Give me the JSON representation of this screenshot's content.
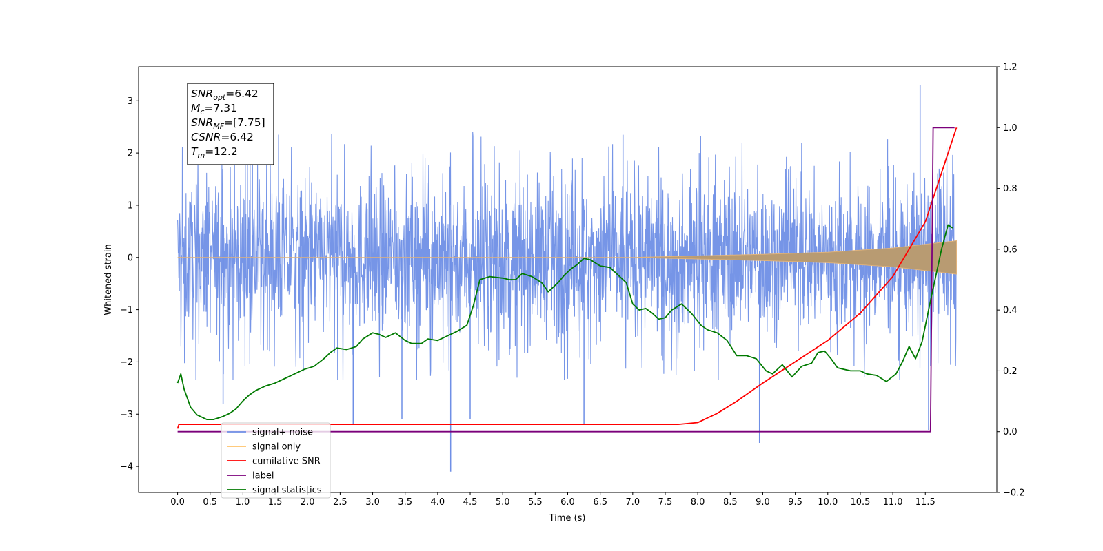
{
  "chart_data": {
    "type": "line",
    "title": "",
    "xlabel": "Time (s)",
    "ylabel": "Whitened strain",
    "y2label": "",
    "xlim": [
      -0.6,
      12.6
    ],
    "ylim": [
      -4.5,
      3.65
    ],
    "y2lim": [
      -0.2,
      1.2
    ],
    "x_ticks": [
      "0.0",
      "0.5",
      "1.0",
      "1.5",
      "2.0",
      "2.5",
      "3.0",
      "3.5",
      "4.0",
      "4.5",
      "5.0",
      "5.5",
      "6.0",
      "6.5",
      "7.0",
      "7.5",
      "8.0",
      "8.5",
      "9.0",
      "9.5",
      "10.0",
      "10.5",
      "11.0",
      "11.5"
    ],
    "y_ticks": [
      "3",
      "2",
      "1",
      "0",
      "−1",
      "−2",
      "−3",
      "−4"
    ],
    "y2_ticks": [
      "1.2",
      "1.0",
      "0.8",
      "0.6",
      "0.4",
      "0.2",
      "0.0",
      "−0.2"
    ],
    "annotation": {
      "lines": [
        {
          "base": "SNR",
          "sub": "opt",
          "rest": "=6.42"
        },
        {
          "base": "M",
          "sub": "c",
          "rest": "=7.31"
        },
        {
          "base": "SNR",
          "sub": "MF",
          "rest": "=[7.75]"
        },
        {
          "base": "CSNR",
          "sub": "",
          "rest": "=6.42"
        },
        {
          "base": "T",
          "sub": "m",
          "rest": "=12.2"
        }
      ]
    },
    "legend": {
      "placement": "lower-left",
      "entries": [
        {
          "label": "signal+ noise",
          "color": "#6f8fe6"
        },
        {
          "label": "signal only",
          "color": "#ffc36a"
        },
        {
          "label": "cumilative SNR",
          "color": "#ff0000"
        },
        {
          "label": "label",
          "color": "#7b007b"
        },
        {
          "label": "signal statistics",
          "color": "#007a00"
        }
      ]
    },
    "series": [
      {
        "name": "signal+ noise",
        "axis": "left",
        "color": "#6f8fe6",
        "x_range": [
          0.0,
          11.98
        ],
        "typical_amplitude": 1.3,
        "spikes": [
          {
            "x": 0.7,
            "y": -2.8
          },
          {
            "x": 1.15,
            "y": 2.25
          },
          {
            "x": 2.7,
            "y": -3.2
          },
          {
            "x": 3.45,
            "y": -3.1
          },
          {
            "x": 4.2,
            "y": -4.1
          },
          {
            "x": 4.5,
            "y": -3.1
          },
          {
            "x": 6.25,
            "y": -3.2
          },
          {
            "x": 6.85,
            "y": 2.35
          },
          {
            "x": 8.95,
            "y": -3.55
          },
          {
            "x": 11.42,
            "y": 3.3
          },
          {
            "x": 11.55,
            "y": -3.3
          }
        ]
      },
      {
        "name": "signal only",
        "axis": "left",
        "color": "#ffc36a",
        "envelope": [
          [
            0.0,
            0.0
          ],
          [
            7.0,
            0.0
          ],
          [
            8.0,
            0.03
          ],
          [
            9.0,
            0.06
          ],
          [
            10.0,
            0.1
          ],
          [
            11.0,
            0.18
          ],
          [
            11.98,
            0.32
          ]
        ]
      },
      {
        "name": "cumilative SNR",
        "axis": "right",
        "color": "#ff0000",
        "x": [
          0.0,
          0.02,
          7.7,
          8.0,
          8.3,
          8.6,
          9.0,
          9.5,
          10.0,
          10.5,
          11.0,
          11.5,
          11.98
        ],
        "values": [
          0.01,
          0.024,
          0.024,
          0.03,
          0.06,
          0.1,
          0.16,
          0.23,
          0.3,
          0.39,
          0.51,
          0.69,
          1.0
        ]
      },
      {
        "name": "label",
        "axis": "right",
        "color": "#7b007b",
        "x": [
          0.0,
          11.58,
          11.62,
          11.95
        ],
        "values": [
          0.0,
          0.0,
          1.0,
          1.0
        ]
      },
      {
        "name": "signal statistics",
        "axis": "right",
        "color": "#007a00",
        "x": [
          0.0,
          0.05,
          0.1,
          0.2,
          0.3,
          0.45,
          0.55,
          0.7,
          0.8,
          0.9,
          1.0,
          1.1,
          1.2,
          1.35,
          1.5,
          1.65,
          1.8,
          1.95,
          2.1,
          2.25,
          2.35,
          2.45,
          2.6,
          2.75,
          2.85,
          3.0,
          3.1,
          3.2,
          3.35,
          3.5,
          3.6,
          3.75,
          3.85,
          4.0,
          4.15,
          4.3,
          4.45,
          4.55,
          4.65,
          4.8,
          5.0,
          5.1,
          5.2,
          5.3,
          5.45,
          5.6,
          5.7,
          5.85,
          5.95,
          6.05,
          6.15,
          6.25,
          6.35,
          6.5,
          6.65,
          6.75,
          6.9,
          7.0,
          7.1,
          7.2,
          7.3,
          7.4,
          7.5,
          7.6,
          7.75,
          7.9,
          8.05,
          8.15,
          8.3,
          8.45,
          8.6,
          8.75,
          8.9,
          9.05,
          9.15,
          9.3,
          9.45,
          9.6,
          9.75,
          9.85,
          9.95,
          10.05,
          10.15,
          10.25,
          10.35,
          10.5,
          10.6,
          10.75,
          10.9,
          11.05,
          11.15,
          11.25,
          11.35,
          11.45,
          11.55,
          11.65,
          11.75,
          11.85,
          11.92
        ],
        "values": [
          0.16,
          0.19,
          0.14,
          0.08,
          0.055,
          0.04,
          0.04,
          0.05,
          0.06,
          0.075,
          0.1,
          0.12,
          0.135,
          0.15,
          0.16,
          0.175,
          0.19,
          0.205,
          0.215,
          0.24,
          0.26,
          0.275,
          0.27,
          0.28,
          0.305,
          0.325,
          0.32,
          0.31,
          0.325,
          0.3,
          0.29,
          0.29,
          0.305,
          0.3,
          0.315,
          0.33,
          0.35,
          0.415,
          0.5,
          0.51,
          0.505,
          0.5,
          0.5,
          0.52,
          0.51,
          0.49,
          0.46,
          0.49,
          0.515,
          0.535,
          0.55,
          0.57,
          0.565,
          0.545,
          0.54,
          0.52,
          0.49,
          0.42,
          0.4,
          0.405,
          0.39,
          0.37,
          0.375,
          0.4,
          0.42,
          0.39,
          0.35,
          0.335,
          0.325,
          0.3,
          0.25,
          0.25,
          0.24,
          0.2,
          0.19,
          0.22,
          0.18,
          0.215,
          0.225,
          0.26,
          0.265,
          0.24,
          0.21,
          0.205,
          0.2,
          0.2,
          0.19,
          0.185,
          0.165,
          0.19,
          0.23,
          0.28,
          0.24,
          0.295,
          0.4,
          0.5,
          0.6,
          0.68,
          0.67
        ]
      }
    ]
  }
}
